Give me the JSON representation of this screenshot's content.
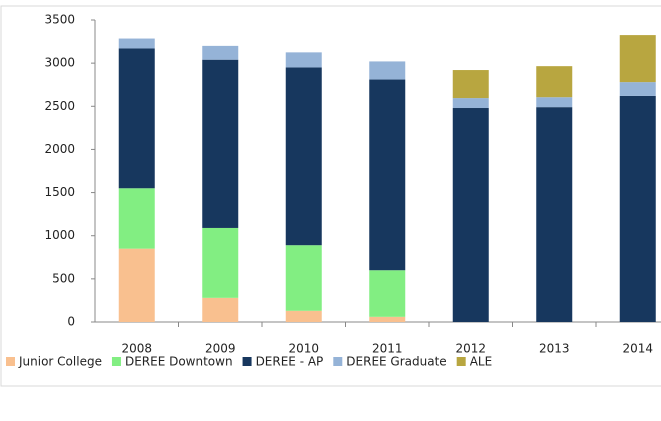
{
  "chart_data": {
    "type": "stacked_bar",
    "categories": [
      "2008",
      "2009",
      "2010",
      "2011",
      "2012",
      "2013",
      "2014"
    ],
    "series": [
      {
        "name": "Junior College",
        "color": "#f9c08f",
        "values": [
          850,
          280,
          130,
          60,
          0,
          0,
          0
        ]
      },
      {
        "name": "DEREE Downtown",
        "color": "#82ee82",
        "values": [
          700,
          810,
          760,
          540,
          0,
          0,
          0
        ]
      },
      {
        "name": "DEREE - AP",
        "color": "#17375e",
        "values": [
          1620,
          1950,
          2060,
          2210,
          2480,
          2490,
          2620
        ]
      },
      {
        "name": "DEREE Graduate",
        "color": "#95b3d7",
        "values": [
          115,
          160,
          175,
          210,
          115,
          115,
          160
        ]
      },
      {
        "name": "ALE",
        "color": "#b8a640",
        "values": [
          0,
          0,
          0,
          0,
          325,
          360,
          545
        ]
      }
    ],
    "ylim": [
      0,
      3500
    ],
    "yticks": [
      0,
      500,
      1000,
      1500,
      2000,
      2500,
      3000,
      3500
    ],
    "legend": "bottom",
    "grid": false
  }
}
